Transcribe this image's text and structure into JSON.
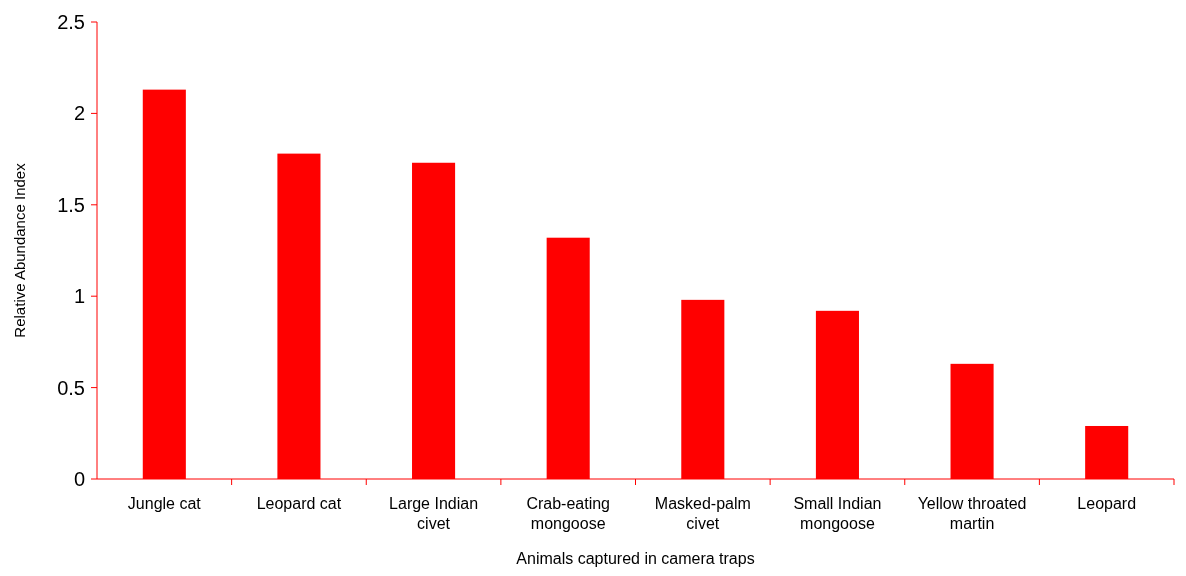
{
  "chart_data": {
    "type": "bar",
    "xlabel": "Animals captured in camera traps",
    "ylabel": "Relative Abundance Index",
    "categories": [
      "Jungle cat",
      "Leopard cat",
      "Large Indian civet",
      "Crab-eating mongoose",
      "Masked-palm civet",
      "Small Indian mongoose",
      "Yellow throated martin",
      "Leopard"
    ],
    "values": [
      2.13,
      1.78,
      1.73,
      1.32,
      0.98,
      0.92,
      0.63,
      0.29
    ],
    "color": "#ff0000",
    "ylim": [
      0,
      2.5
    ],
    "yticks": [
      0,
      0.5,
      1,
      1.5,
      2,
      2.5
    ],
    "grid": false
  }
}
